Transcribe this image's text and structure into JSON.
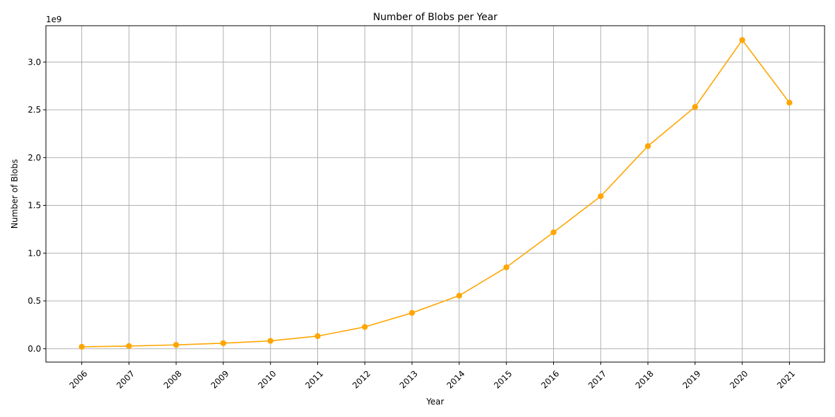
{
  "chart_data": {
    "type": "line",
    "title": "Number of Blobs per Year",
    "xlabel": "Year",
    "ylabel": "Number of Blobs",
    "y_offset_label": "1e9",
    "x": [
      "2006",
      "2007",
      "2008",
      "2009",
      "2010",
      "2011",
      "2012",
      "2013",
      "2014",
      "2015",
      "2016",
      "2017",
      "2018",
      "2019",
      "2020",
      "2021"
    ],
    "series": [
      {
        "values": [
          0.02,
          0.028,
          0.04,
          0.058,
          0.082,
          0.132,
          0.228,
          0.375,
          0.555,
          0.852,
          1.218,
          1.595,
          2.12,
          2.53,
          3.23,
          2.575
        ],
        "color": "#ffa500",
        "marker": "circle"
      }
    ],
    "y_ticks": [
      "0.0",
      "0.5",
      "1.0",
      "1.5",
      "2.0",
      "2.5",
      "3.0"
    ],
    "y_tick_values": [
      0,
      0.5,
      1.0,
      1.5,
      2.0,
      2.5,
      3.0
    ],
    "ylim": [
      -0.14,
      3.38
    ],
    "grid": true,
    "x_tick_rotation": 45
  }
}
